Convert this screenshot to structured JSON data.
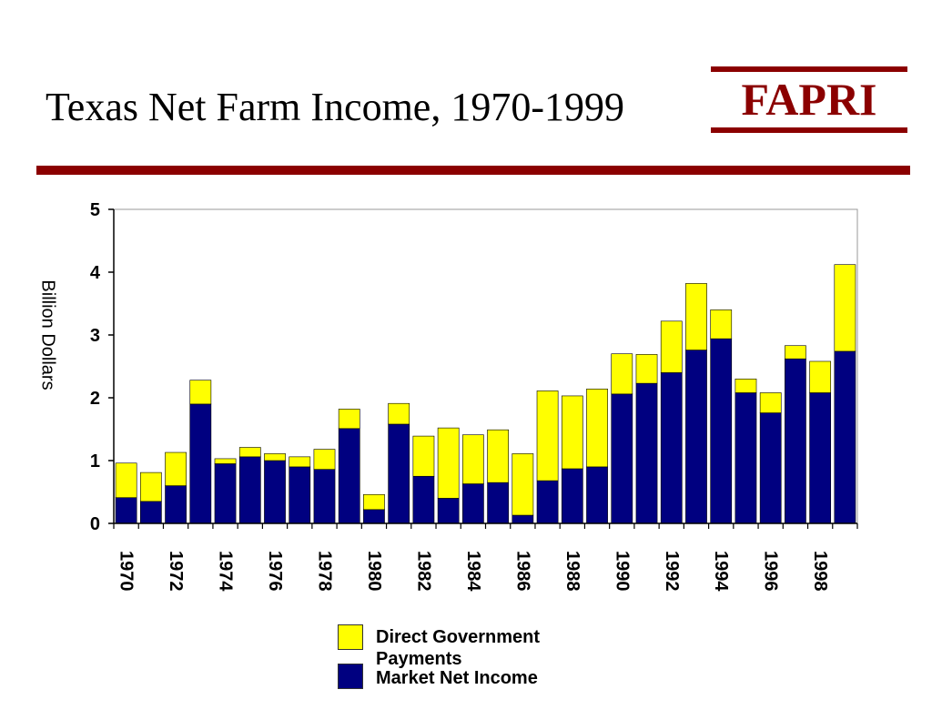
{
  "slide": {
    "title": "Texas Net Farm Income, 1970-1999",
    "logo_text": "FAPRI",
    "brand_color": "#8b0000"
  },
  "chart_data": {
    "type": "bar",
    "stacked": true,
    "title": "",
    "ylabel": "Billion Dollars",
    "xlabel": "",
    "ylim": [
      0,
      5
    ],
    "yticks": [
      "0",
      "1",
      "2",
      "3",
      "4",
      "5"
    ],
    "grid": false,
    "legend_placement": "bottom-center",
    "categories": [
      "1970",
      "1971",
      "1972",
      "1973",
      "1974",
      "1975",
      "1976",
      "1977",
      "1978",
      "1979",
      "1980",
      "1981",
      "1982",
      "1983",
      "1984",
      "1985",
      "1986",
      "1987",
      "1988",
      "1989",
      "1990",
      "1991",
      "1992",
      "1993",
      "1994",
      "1995",
      "1996",
      "1997",
      "1998",
      "1999"
    ],
    "xtick_labels": [
      "1970",
      "",
      "1972",
      "",
      "1974",
      "",
      "1976",
      "",
      "1978",
      "",
      "1980",
      "",
      "1982",
      "",
      "1984",
      "",
      "1986",
      "",
      "1988",
      "",
      "1990",
      "",
      "1992",
      "",
      "1994",
      "",
      "1996",
      "",
      "1998",
      ""
    ],
    "series": [
      {
        "name": "Market Net Income",
        "color": "#000080",
        "values": [
          0.41,
          0.35,
          0.6,
          1.9,
          0.95,
          1.06,
          1.0,
          0.9,
          0.86,
          1.51,
          0.22,
          1.58,
          0.75,
          0.4,
          0.63,
          0.65,
          0.13,
          0.68,
          0.87,
          0.9,
          2.06,
          2.23,
          2.4,
          2.76,
          2.94,
          2.08,
          1.76,
          2.62,
          2.08,
          2.74
        ]
      },
      {
        "name": "Direct Government Payments",
        "color": "#ffff00",
        "values": [
          0.55,
          0.46,
          0.53,
          0.38,
          0.08,
          0.15,
          0.11,
          0.16,
          0.32,
          0.31,
          0.24,
          0.33,
          0.64,
          1.12,
          0.78,
          0.84,
          0.98,
          1.43,
          1.16,
          1.24,
          0.64,
          0.46,
          0.82,
          1.06,
          0.46,
          0.22,
          0.32,
          0.21,
          0.5,
          1.38
        ]
      }
    ]
  }
}
